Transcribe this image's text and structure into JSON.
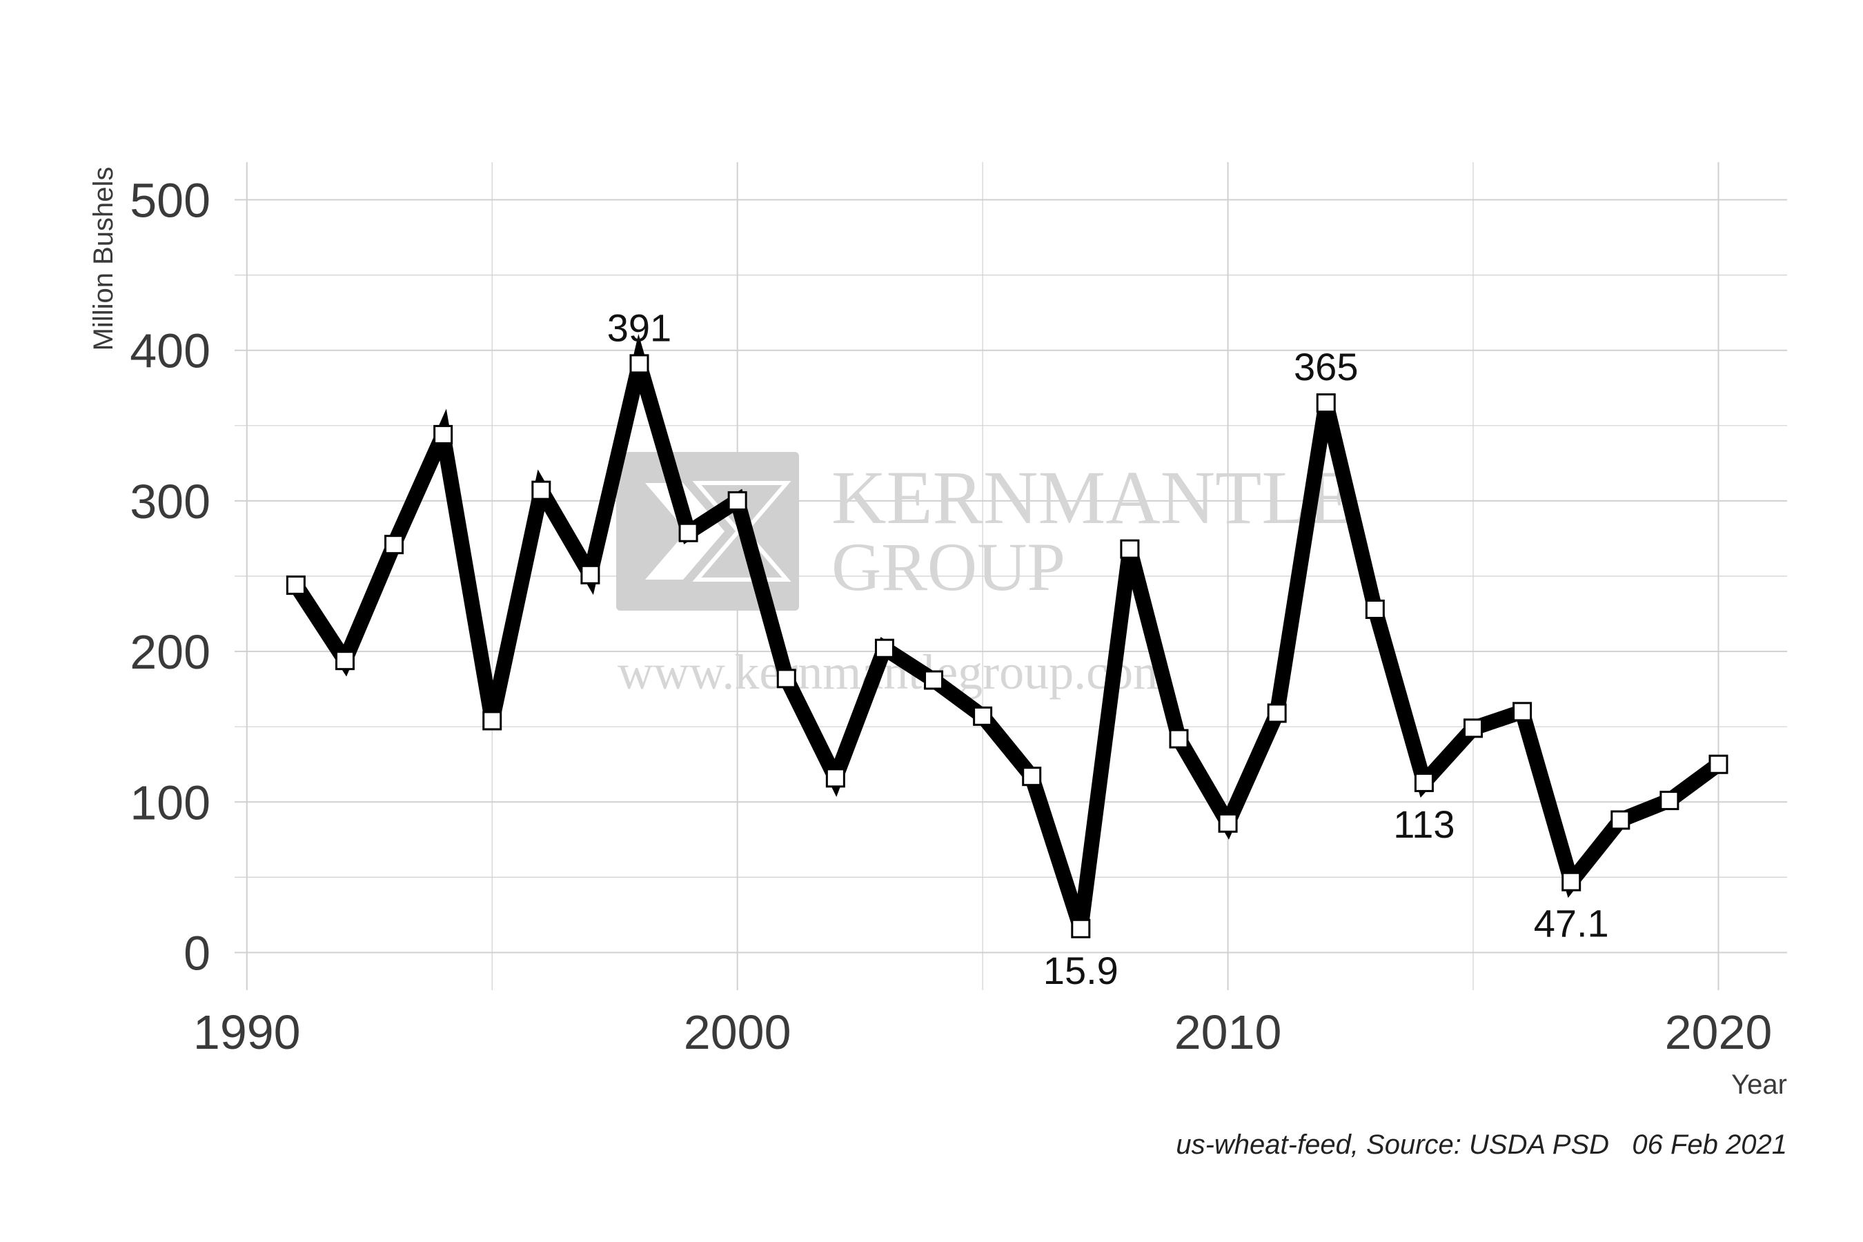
{
  "chart_data": {
    "type": "line",
    "xlabel": "Year",
    "ylabel": "Million Bushels",
    "xlim": [
      1989.75,
      2021.4
    ],
    "ylim": [
      -25,
      525
    ],
    "x_ticks": [
      1990,
      2000,
      2010,
      2020
    ],
    "y_ticks": [
      0,
      100,
      200,
      300,
      400,
      500
    ],
    "grid": true,
    "series": [
      {
        "x": [
          1991,
          1992,
          1993,
          1994,
          1995,
          1996,
          1997,
          1998,
          1999,
          2000,
          2001,
          2002,
          2003,
          2004,
          2005,
          2006,
          2007,
          2008,
          2009,
          2010,
          2011,
          2012,
          2013,
          2014,
          2015,
          2016,
          2017,
          2018,
          2019,
          2020
        ],
        "values": [
          244,
          194,
          271,
          344,
          154,
          307,
          251,
          391,
          279,
          300,
          182,
          116,
          202,
          181,
          157,
          117,
          15.9,
          268,
          142,
          86,
          159,
          365,
          228,
          113,
          149,
          160,
          47.1,
          88,
          101,
          125
        ]
      }
    ],
    "annotations": [
      {
        "x": 1998,
        "y": 391,
        "text": "391",
        "position": "above"
      },
      {
        "x": 2007,
        "y": 15.9,
        "text": "15.9",
        "position": "below"
      },
      {
        "x": 2012,
        "y": 365,
        "text": "365",
        "position": "above"
      },
      {
        "x": 2014,
        "y": 113,
        "text": "113",
        "position": "below"
      },
      {
        "x": 2017,
        "y": 47.1,
        "text": "47.1",
        "position": "below"
      }
    ],
    "caption": "us-wheat-feed, Source: USDA PSD   06 Feb 2021",
    "watermark": {
      "line1": "KERNMANTLE",
      "line2": "GROUP",
      "url": "www.kernmantlegroup.com"
    },
    "colors": {
      "line": "#000000",
      "marker_fill": "#ffffff",
      "grid": "#d0d0d0",
      "tick_text": "#3a3a3a",
      "watermark": "#d6d6d6"
    }
  }
}
